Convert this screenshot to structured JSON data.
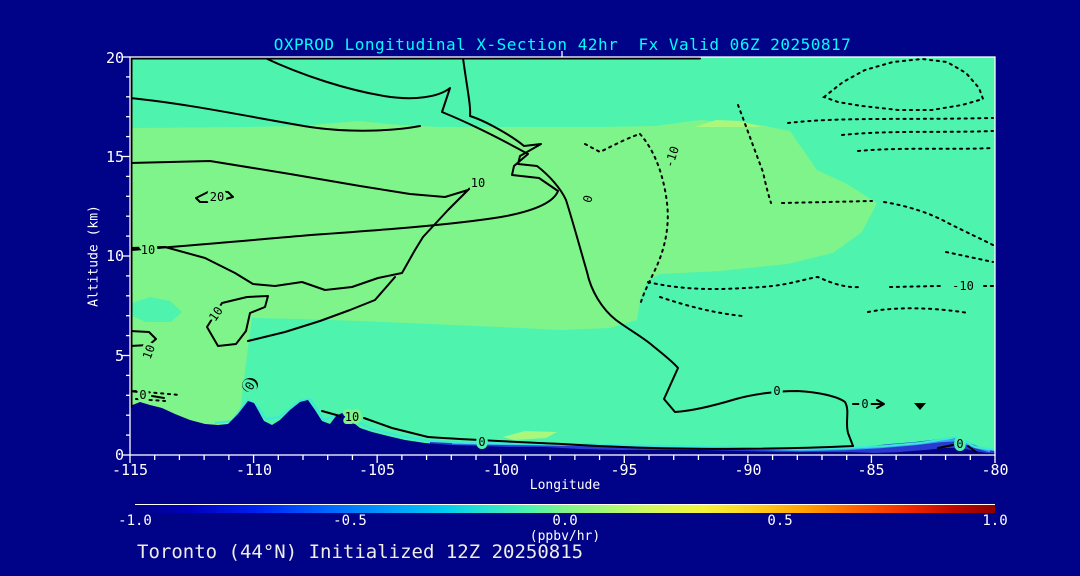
{
  "title": "OXPROD Longitudinal X-Section 42hr  Fx Valid 06Z 20250817",
  "footer": "Toronto (44°N) Initialized 12Z 20250815",
  "axes": {
    "x": {
      "label": "Longitude",
      "ticks": [
        "-115",
        "-110",
        "-105",
        "-100",
        "-95",
        "-90",
        "-85",
        "-80"
      ]
    },
    "y": {
      "label": "Altitude (km)",
      "ticks": [
        "0",
        "5",
        "10",
        "15",
        "20"
      ]
    }
  },
  "colorbar": {
    "units_label": "(ppbv/hr)",
    "ticks": [
      "-1.0",
      "-0.5",
      "0.0",
      "0.5",
      "1.0"
    ],
    "min": -1.0,
    "max": 1.0
  },
  "colors": {
    "background": "#000287",
    "title_text": "#00ffff",
    "axis_text": "#ffffff",
    "fill_slightly_positive_green": "#7ff48a",
    "fill_near_zero_aqua": "#4ef3ae",
    "fill_pale_patch": "#aaf77e",
    "surface_cyan_layer": "#3ce8d8",
    "surface_lightblue_layer": "#39a6f2",
    "surface_blue_layer": "#2a39cf",
    "contour_lines": "#000000"
  },
  "chart_data": {
    "type": "contour",
    "title": "OXPROD Longitudinal X-Section 42hr  Fx Valid 06Z 20250817",
    "subtitle": "Toronto (44°N) Initialized 12Z 20250815",
    "xlabel": "Longitude",
    "ylabel": "Altitude (km)",
    "x_range": [
      -115,
      -80
    ],
    "y_range": [
      0,
      20
    ],
    "x_tick_interval_major": 5,
    "x_tick_interval_minor": 1,
    "y_tick_interval_major": 5,
    "y_tick_interval_minor": 1,
    "shading_units": "ppbv/hr",
    "shading_range": [
      -1.0,
      1.0
    ],
    "line_contour_levels_visible": [
      -10,
      0,
      10,
      20
    ],
    "line_style_convention": "solid = zero/positive, dotted = negative",
    "contour_labels": [
      {
        "text": "20",
        "lon": -111.5,
        "alt_km": 13.0,
        "rotated": false
      },
      {
        "text": "10",
        "lon": -100.9,
        "alt_km": 13.7,
        "rotated": false
      },
      {
        "text": "10",
        "lon": -114.3,
        "alt_km": 10.3,
        "rotated": false
      },
      {
        "text": "10",
        "lon": -111.5,
        "alt_km": 7.1,
        "rotated": true
      },
      {
        "text": "10",
        "lon": -114.2,
        "alt_km": 5.2,
        "rotated": true
      },
      {
        "text": "10",
        "lon": -106.0,
        "alt_km": 1.9,
        "rotated": false
      },
      {
        "text": "0",
        "lon": -96.5,
        "alt_km": 12.9,
        "rotated": true
      },
      {
        "text": "0",
        "lon": -100.8,
        "alt_km": 0.7,
        "rotated": false
      },
      {
        "text": "0",
        "lon": -88.8,
        "alt_km": 3.2,
        "rotated": false
      },
      {
        "text": "0",
        "lon": -85.3,
        "alt_km": 2.6,
        "rotated": false
      },
      {
        "text": "0",
        "lon": -81.4,
        "alt_km": 0.6,
        "rotated": false
      },
      {
        "text": "0",
        "lon": -114.5,
        "alt_km": 3.0,
        "rotated": false
      },
      {
        "text": "0",
        "lon": -110.1,
        "alt_km": 3.5,
        "rotated": true
      },
      {
        "text": "-10",
        "lon": -93.1,
        "alt_km": 15.0,
        "rotated": true
      },
      {
        "text": "-10",
        "lon": -81.3,
        "alt_km": 8.5,
        "rotated": false
      }
    ],
    "terrain_profile_lon_altkm": [
      [
        -115,
        2.4
      ],
      [
        -113.6,
        1.6
      ],
      [
        -110.2,
        2.7
      ],
      [
        -109.6,
        1.7
      ],
      [
        -107.8,
        2.8
      ],
      [
        -107.2,
        1.6
      ],
      [
        -106.5,
        2.1
      ],
      [
        -105.5,
        1.2
      ],
      [
        -103.5,
        0.8
      ],
      [
        -101.0,
        0.5
      ],
      [
        -98.0,
        0.4
      ],
      [
        -95.0,
        0.3
      ],
      [
        -92.0,
        0.25
      ],
      [
        -88.0,
        0.15
      ],
      [
        -85.0,
        0.1
      ],
      [
        -82.3,
        0.35
      ],
      [
        -80.5,
        0.1
      ],
      [
        -80.0,
        0.1
      ]
    ],
    "shaded_field_summary": "Broad weakly-positive (light green, ~+0.05) band over the west/center between ~1-13 km; near-zero aquamarine elsewhere; thin negative (cyan/light-blue/blue, down to ~-0.5) layer hugging the surface east of about -101; navy terrain silhouette (Rockies ~2.8 km near -108) along the bottom.",
    "marker": {
      "shape": "down-triangle",
      "lon": -83.0,
      "alt_km": 2.5
    }
  }
}
